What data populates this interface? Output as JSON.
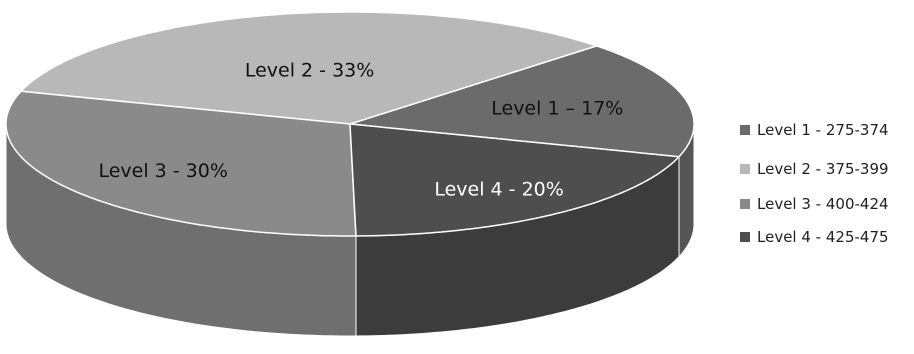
{
  "chart_data": {
    "type": "pie",
    "style": "3d-exploded-tilt",
    "title": "",
    "categories": [
      "Level 1 - 275-374",
      "Level 2 - 375-399",
      "Level 3 - 400-424",
      "Level 4 - 425-475"
    ],
    "values": [
      17,
      33,
      30,
      20
    ],
    "unit": "%",
    "data_labels": [
      "Level 1 – 17%",
      "Level 2 - 33%",
      "Level 3 - 30%",
      "Level 4 - 20%"
    ],
    "colors": [
      "#6b6b6b",
      "#b8b8b8",
      "#8a8a8a",
      "#4e4e4e"
    ],
    "side_colors": [
      "#555555",
      "#9a9a9a",
      "#6f6f6f",
      "#3c3c3c"
    ],
    "label_colors": [
      "#111111",
      "#111111",
      "#111111",
      "#ffffff"
    ],
    "legend": {
      "position": "right",
      "entries": [
        "Level 1 - 275-374",
        "Level 2 - 375-399",
        "Level 3 - 400-424",
        "Level 4 - 425-475"
      ]
    }
  }
}
